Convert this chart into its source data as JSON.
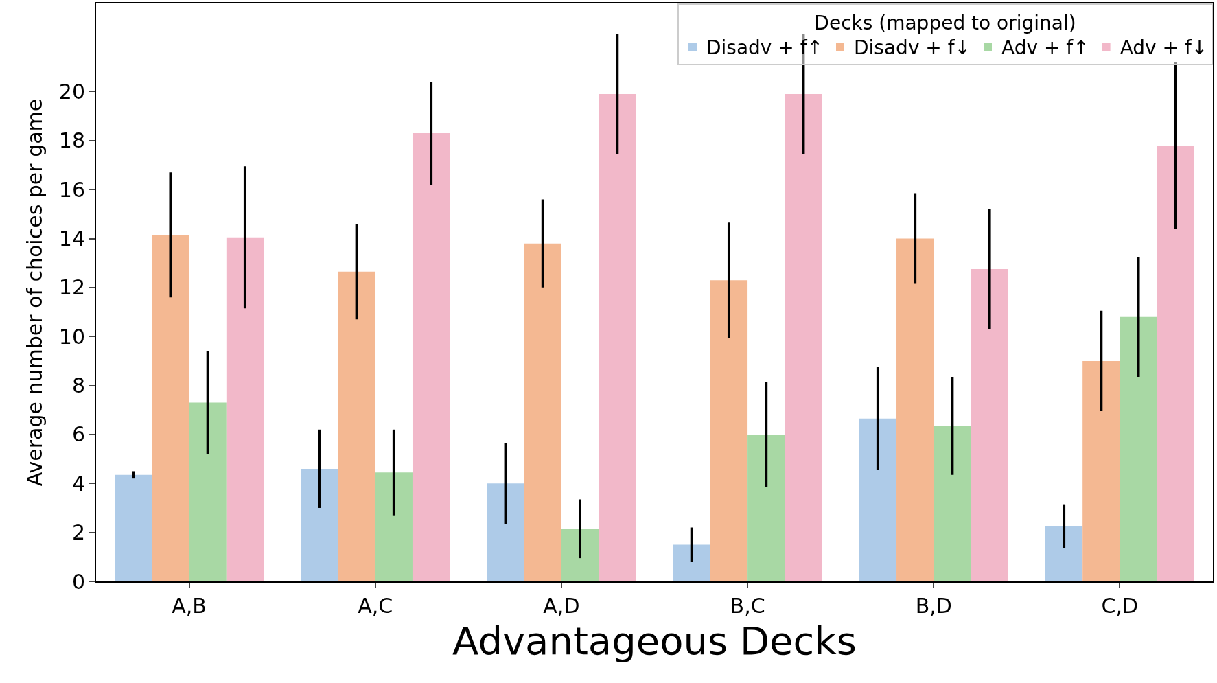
{
  "chart_data": {
    "type": "bar",
    "xlabel": "Advantageous Decks",
    "ylabel": "Average number of choices per game",
    "legend_title": "Decks (mapped to original)",
    "categories": [
      "A,B",
      "A,C",
      "A,D",
      "B,C",
      "B,D",
      "C,D"
    ],
    "series": [
      {
        "name": "Disadv + f↑",
        "color": "#aecbe8",
        "values": [
          4.35,
          4.6,
          4.0,
          1.5,
          6.65,
          2.25
        ],
        "errors": [
          0.15,
          1.6,
          1.65,
          0.7,
          2.1,
          0.9
        ]
      },
      {
        "name": "Disadv + f↓",
        "color": "#f4b892",
        "values": [
          14.15,
          12.65,
          13.8,
          12.3,
          14.0,
          9.0
        ],
        "errors": [
          2.55,
          1.95,
          1.8,
          2.35,
          1.85,
          2.05
        ]
      },
      {
        "name": "Adv + f↑",
        "color": "#a8d8a4",
        "values": [
          7.3,
          4.45,
          2.15,
          6.0,
          6.35,
          10.8
        ],
        "errors": [
          2.1,
          1.75,
          1.2,
          2.15,
          2.0,
          2.45
        ]
      },
      {
        "name": "Adv + f↓",
        "color": "#f2b8c9",
        "values": [
          14.05,
          18.3,
          19.9,
          19.9,
          12.75,
          17.8
        ],
        "errors": [
          2.9,
          2.1,
          2.45,
          2.45,
          2.45,
          3.4
        ]
      }
    ],
    "ylim": [
      0,
      23.6
    ],
    "yticks": [
      0,
      2,
      4,
      6,
      8,
      10,
      12,
      14,
      16,
      18,
      20
    ],
    "legend": "top right"
  }
}
